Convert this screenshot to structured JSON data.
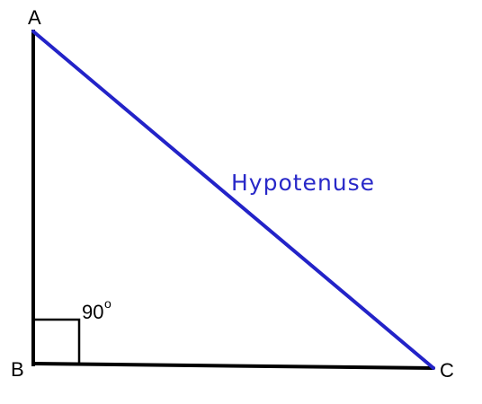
{
  "diagram": {
    "vertices": {
      "a": "A",
      "b": "B",
      "c": "C"
    },
    "hypotenuse_label": "Hypotenuse",
    "right_angle": {
      "value": "90",
      "unit": "o"
    },
    "colors": {
      "legs": "#000000",
      "hypotenuse": "#2323c8",
      "hypotenuse_label": "#2828c8"
    }
  }
}
